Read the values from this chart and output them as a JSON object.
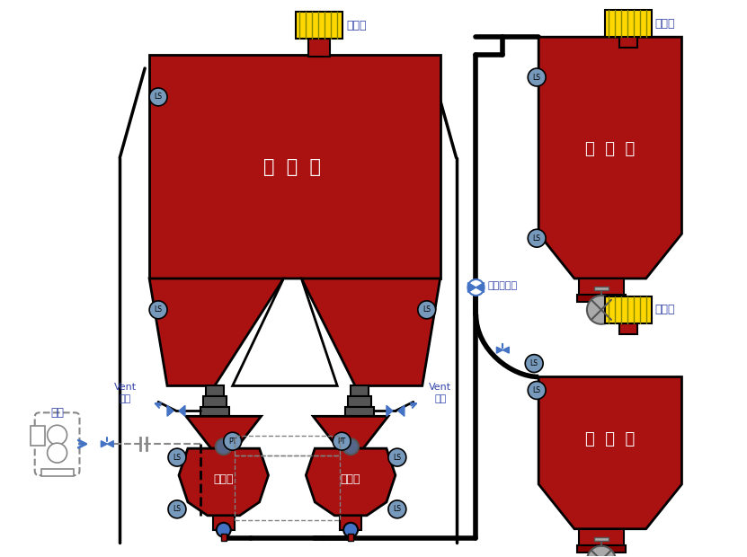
{
  "bg_color": "#ffffff",
  "red": "#AA1111",
  "dark_red": "#880000",
  "dgray": "#555555",
  "gray": "#888888",
  "lgray": "#aaaaaa",
  "blue": "#4472C4",
  "ls_color": "#7799BB",
  "yellow": "#FFD700",
  "black": "#000000",
  "stripe_color": "#888800",
  "text_blue": "#3344AA",
  "storage_label": "储  料  仓",
  "receive1_label": "接  收  仓",
  "receive2_label": "接  收  仓",
  "pump1_label": "輸送泵",
  "pump2_label": "輸送泵",
  "dust1_label": "除塵器",
  "dust2_label": "除塵器",
  "dust3_label": "除塵器",
  "vent_label": "Vent\n排氣",
  "qiyuan_label": "氣源",
  "valve_label": "管路切換閥",
  "ls_label": "LS",
  "pt_label": "PT"
}
